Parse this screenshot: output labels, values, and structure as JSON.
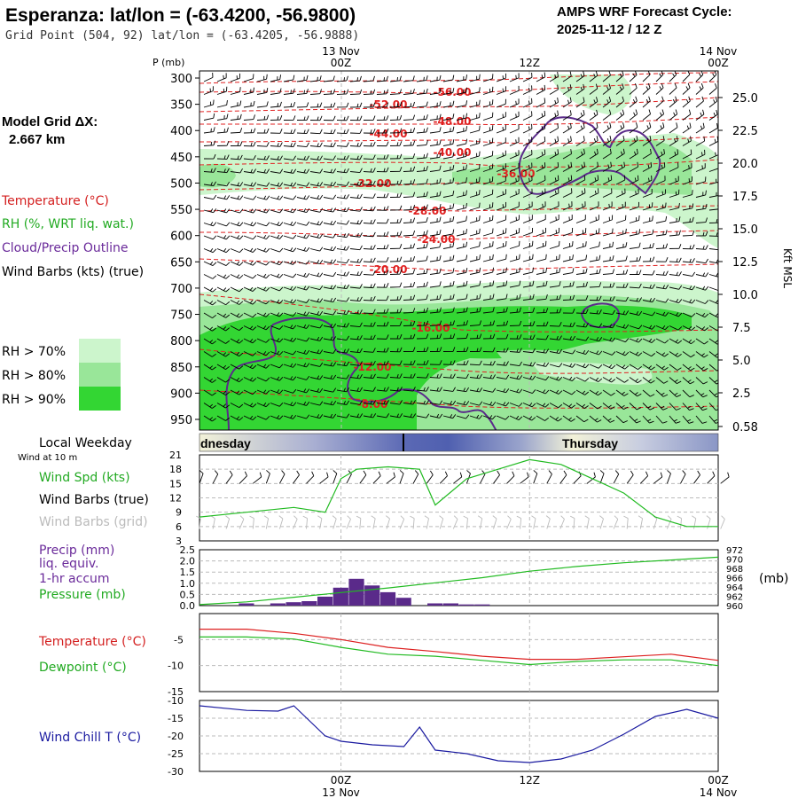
{
  "header": {
    "title": "Esperanza:  lat/lon = (-63.4200, -56.9800)",
    "grid_point": "Grid Point (504, 92) lat/lon = (-63.4205, -56.9888)",
    "cycle_label": "AMPS WRF Forecast Cycle:",
    "cycle_value": "2025-11-12 / 12  Z",
    "model_grid_label": "Model Grid ΔX:",
    "model_grid_value": "2.667 km"
  },
  "legend": {
    "temperature": "Temperature (°C)",
    "rh": "RH (%, WRT liq. wat.)",
    "cloud": "Cloud/Precip Outline",
    "wind": "Wind Barbs (kts) (true)",
    "rh70": "RH > 70%",
    "rh80": "RH > 80%",
    "rh90": "RH > 90%",
    "rh_colors": [
      "#ccf5cc",
      "#99e699",
      "#33d633"
    ]
  },
  "time_axis": {
    "top_labels": [
      {
        "date": "13 Nov",
        "hour": "00Z"
      },
      {
        "date": "",
        "hour": "12Z"
      },
      {
        "date": "14 Nov",
        "hour": "00Z"
      }
    ],
    "bottom_labels": [
      {
        "hour": "00Z",
        "date": "13 Nov"
      },
      {
        "hour": "12Z",
        "date": ""
      },
      {
        "hour": "00Z",
        "date": "14 Nov"
      }
    ],
    "forecast_hours_start": -9,
    "forecast_hours_end": 24
  },
  "chart_data": [
    {
      "type": "heatmap",
      "name": "vertical-cross-section",
      "ylabel": "P (mb)",
      "right_label": "Kft MSL",
      "pressure_ticks": [
        300,
        350,
        400,
        450,
        500,
        550,
        600,
        650,
        700,
        750,
        800,
        850,
        900,
        950
      ],
      "height_ticks": [
        "25.0",
        "22.5",
        "20.0",
        "17.5",
        "15.0",
        "12.5",
        "10.0",
        "7.5",
        "5.0",
        "2.5",
        "0.58"
      ],
      "temperature_labels": [
        "-56.00",
        "-52.00",
        "-48.00",
        "-44.00",
        "-40.00",
        "-36.00",
        "-32.00",
        "-28.00",
        "-24.00",
        "-20.00",
        "-16.00",
        "-12.00",
        "-8.00"
      ]
    },
    {
      "type": "line",
      "name": "weekday-bar",
      "title": "Local Weekday",
      "days": [
        "dnesday",
        "Thursday"
      ]
    },
    {
      "type": "line",
      "name": "wind-10m",
      "subtitle": "Wind at 10 m",
      "labels": {
        "speed": "Wind Spd (kts)",
        "barbs_true": "Wind Barbs (true)",
        "barbs_grid": "Wind Barbs (grid)"
      },
      "ylim": [
        3,
        21
      ],
      "ticks": [
        3,
        6,
        9,
        12,
        15,
        18,
        21
      ],
      "x": [
        -9,
        -6,
        -3,
        -1,
        0,
        1,
        3,
        5,
        6,
        8,
        10,
        12,
        14,
        16,
        18,
        20,
        22,
        24
      ],
      "speed": [
        8,
        9,
        10,
        9,
        16,
        18,
        18.5,
        18,
        10.5,
        16,
        18,
        20,
        19,
        16,
        13,
        8,
        6,
        6
      ],
      "barb_y_true": 15,
      "barb_y_grid": 5.5
    },
    {
      "type": "bar",
      "name": "precip-pressure",
      "labels": {
        "precip": "Precip (mm)",
        "liq": "liq. equiv.",
        "accum": "1-hr accum",
        "pressure": "Pressure (mb)",
        "right_unit": "(mb)"
      },
      "precip_ylim": [
        0,
        2.5
      ],
      "precip_ticks": [
        "0.0",
        "0.5",
        "1.0",
        "1.5",
        "2.0",
        "2.5"
      ],
      "pressure_ylim": [
        960,
        972
      ],
      "pressure_ticks": [
        960,
        962,
        964,
        966,
        968,
        970,
        972
      ],
      "precip_x": [
        -6,
        -4,
        -3,
        -2,
        -1,
        0,
        1,
        2,
        3,
        4,
        6,
        7,
        8,
        9
      ],
      "precip_values": [
        0.1,
        0.1,
        0.15,
        0.2,
        0.4,
        0.8,
        1.2,
        0.9,
        0.6,
        0.35,
        0.1,
        0.1,
        0.05,
        0.05
      ],
      "pressure_x": [
        -9,
        -6,
        -3,
        0,
        3,
        6,
        9,
        12,
        15,
        18,
        21,
        24
      ],
      "pressure": [
        960.2,
        960.8,
        961.8,
        962.8,
        963.8,
        964.9,
        966.0,
        967.4,
        968.4,
        969.2,
        969.8,
        970.4
      ]
    },
    {
      "type": "line",
      "name": "temperature-dewpoint",
      "labels": {
        "temperature": "Temperature (°C)",
        "dewpoint": "Dewpoint (°C)"
      },
      "ylim": [
        -15,
        0
      ],
      "ticks": [
        -15,
        -10,
        -5
      ],
      "x": [
        -9,
        -6,
        -3,
        0,
        3,
        6,
        9,
        12,
        15,
        18,
        21,
        24
      ],
      "temperature": [
        -3.0,
        -3.0,
        -3.8,
        -5.0,
        -6.5,
        -7.3,
        -8.2,
        -8.8,
        -8.8,
        -8.3,
        -7.8,
        -9.0
      ],
      "dewpoint": [
        -4.5,
        -4.5,
        -4.9,
        -6.5,
        -7.8,
        -8.2,
        -9.0,
        -9.8,
        -9.2,
        -8.9,
        -8.9,
        -10.0
      ]
    },
    {
      "type": "line",
      "name": "wind-chill",
      "labels": {
        "wind_chill": "Wind Chill T (°C)"
      },
      "ylim": [
        -30,
        -10
      ],
      "ticks": [
        -30,
        -25,
        -20,
        -15,
        -10
      ],
      "x": [
        -9,
        -6,
        -4,
        -3,
        -1,
        0,
        2,
        4,
        5,
        6,
        8,
        10,
        12,
        14,
        16,
        18,
        20,
        22,
        24
      ],
      "wind_chill": [
        -11.5,
        -12.8,
        -13,
        -11.5,
        -20,
        -21.5,
        -22.5,
        -23,
        -17.5,
        -24,
        -25,
        -27,
        -27.5,
        -26.5,
        -24,
        -19.5,
        -14.5,
        -12.5,
        -15
      ]
    }
  ]
}
